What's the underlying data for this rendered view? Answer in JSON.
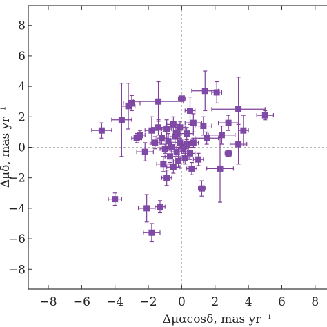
{
  "chart_data": {
    "type": "scatter",
    "title": "",
    "xlabel": "Δμαcosδ, mas yr⁻¹",
    "ylabel": "Δμδ, mas yr⁻¹",
    "xlim": [
      -9.2,
      9
    ],
    "ylim": [
      -9.3,
      9.3
    ],
    "xticks": [
      -8,
      -6,
      -4,
      -2,
      0,
      2,
      4,
      6,
      8
    ],
    "yticks": [
      -8,
      -6,
      -4,
      -2,
      0,
      2,
      4,
      6,
      8
    ],
    "reference_lines": {
      "x": 0,
      "y": 0
    },
    "color": "#7e4aa6",
    "points": [
      {
        "x": -4.8,
        "y": 1.1,
        "xerr": 0.6,
        "yerr": 0.5
      },
      {
        "x": -3.6,
        "y": 1.8,
        "xerr": 0.6,
        "yerr": 2.4
      },
      {
        "x": -3.2,
        "y": 2.7,
        "xerr": 0.4,
        "yerr": 1.5
      },
      {
        "x": -3.0,
        "y": 2.9,
        "xerr": 0.5,
        "yerr": 0.5
      },
      {
        "x": -1.4,
        "y": 3.0,
        "xerr": 1.5,
        "yerr": 1.3
      },
      {
        "x": 0.0,
        "y": 3.2,
        "xerr": 0.2,
        "yerr": 0.1
      },
      {
        "x": 1.4,
        "y": 3.7,
        "xerr": 0.8,
        "yerr": 1.3
      },
      {
        "x": 2.1,
        "y": 3.6,
        "xerr": 0.3,
        "yerr": 0.7
      },
      {
        "x": 3.4,
        "y": 2.5,
        "xerr": 1.6,
        "yerr": 2.1
      },
      {
        "x": 5.0,
        "y": 2.1,
        "xerr": 0.5,
        "yerr": 0.3
      },
      {
        "x": 3.7,
        "y": 1.1,
        "xerr": 0.3,
        "yerr": 1.0
      },
      {
        "x": 2.8,
        "y": 1.6,
        "xerr": 0.6,
        "yerr": 0.5
      },
      {
        "x": 2.4,
        "y": 0.8,
        "xerr": 0.8,
        "yerr": 0.6
      },
      {
        "x": 1.5,
        "y": 0.6,
        "xerr": 0.7,
        "yerr": 0.4
      },
      {
        "x": 1.3,
        "y": 1.4,
        "xerr": 0.5,
        "yerr": 0.6
      },
      {
        "x": 0.7,
        "y": 1.6,
        "xerr": 0.5,
        "yerr": 0.6
      },
      {
        "x": 0.5,
        "y": 2.4,
        "xerr": 0.3,
        "yerr": 0.9
      },
      {
        "x": 3.4,
        "y": 0.2,
        "xerr": 0.5,
        "yerr": 1.3
      },
      {
        "x": 2.8,
        "y": -0.4,
        "xerr": 0.2,
        "yerr": 0.2
      },
      {
        "x": 2.3,
        "y": -1.4,
        "xerr": 0.8,
        "yerr": 2.2
      },
      {
        "x": 1.2,
        "y": -2.7,
        "xerr": 0.2,
        "yerr": 0.5
      },
      {
        "x": -2.7,
        "y": 0.6,
        "xerr": 0.3,
        "yerr": 0.3
      },
      {
        "x": -2.5,
        "y": 0.8,
        "xerr": 0.3,
        "yerr": 0.3
      },
      {
        "x": -2.2,
        "y": -0.3,
        "xerr": 0.5,
        "yerr": 0.6
      },
      {
        "x": -1.8,
        "y": 1.1,
        "xerr": 0.4,
        "yerr": 0.9
      },
      {
        "x": -1.4,
        "y": 1.3,
        "xerr": 0.4,
        "yerr": 0.5
      },
      {
        "x": -0.9,
        "y": 1.2,
        "xerr": 0.3,
        "yerr": 0.6
      },
      {
        "x": -0.5,
        "y": 1.5,
        "xerr": 0.4,
        "yerr": 0.5
      },
      {
        "x": -0.1,
        "y": 1.3,
        "xerr": 0.3,
        "yerr": 0.4
      },
      {
        "x": 0.3,
        "y": 0.9,
        "xerr": 0.4,
        "yerr": 0.4
      },
      {
        "x": -1.6,
        "y": 0.3,
        "xerr": 0.3,
        "yerr": 0.4
      },
      {
        "x": -1.2,
        "y": 0.6,
        "xerr": 0.3,
        "yerr": 0.4
      },
      {
        "x": -1.0,
        "y": -0.1,
        "xerr": 0.3,
        "yerr": 0.3
      },
      {
        "x": -0.8,
        "y": 0.4,
        "xerr": 0.4,
        "yerr": 0.5
      },
      {
        "x": -0.6,
        "y": 0.0,
        "xerr": 0.3,
        "yerr": 0.3
      },
      {
        "x": -0.4,
        "y": 0.7,
        "xerr": 0.3,
        "yerr": 0.4
      },
      {
        "x": -0.3,
        "y": -0.3,
        "xerr": 0.3,
        "yerr": 0.3
      },
      {
        "x": -0.1,
        "y": 0.3,
        "xerr": 0.3,
        "yerr": 0.3
      },
      {
        "x": 0.1,
        "y": -0.1,
        "xerr": 0.3,
        "yerr": 0.3
      },
      {
        "x": 0.3,
        "y": 0.2,
        "xerr": 0.3,
        "yerr": 0.3
      },
      {
        "x": 0.5,
        "y": -0.4,
        "xerr": 0.3,
        "yerr": 0.4
      },
      {
        "x": 0.7,
        "y": 0.3,
        "xerr": 0.3,
        "yerr": 0.3
      },
      {
        "x": -0.7,
        "y": -0.6,
        "xerr": 0.3,
        "yerr": 0.4
      },
      {
        "x": -1.1,
        "y": -1.1,
        "xerr": 0.4,
        "yerr": 0.5
      },
      {
        "x": -0.5,
        "y": -1.3,
        "xerr": 0.4,
        "yerr": 0.4
      },
      {
        "x": -0.2,
        "y": -0.9,
        "xerr": 0.3,
        "yerr": 0.4
      },
      {
        "x": 0.2,
        "y": -0.7,
        "xerr": 0.3,
        "yerr": 0.4
      },
      {
        "x": 0.6,
        "y": -1.4,
        "xerr": 0.3,
        "yerr": 0.4
      },
      {
        "x": 1.0,
        "y": -0.8,
        "xerr": 0.3,
        "yerr": 0.4
      },
      {
        "x": -0.9,
        "y": -2.0,
        "xerr": 0.3,
        "yerr": 0.5
      },
      {
        "x": -0.3,
        "y": 0.9,
        "xerr": 0.2,
        "yerr": 0.3
      },
      {
        "x": -4.0,
        "y": -3.4,
        "xerr": 0.4,
        "yerr": 0.4
      },
      {
        "x": -2.1,
        "y": -4.0,
        "xerr": 0.5,
        "yerr": 0.9
      },
      {
        "x": -1.3,
        "y": -3.9,
        "xerr": 0.3,
        "yerr": 0.4
      },
      {
        "x": -1.8,
        "y": -5.6,
        "xerr": 0.5,
        "yerr": 0.6
      }
    ]
  }
}
